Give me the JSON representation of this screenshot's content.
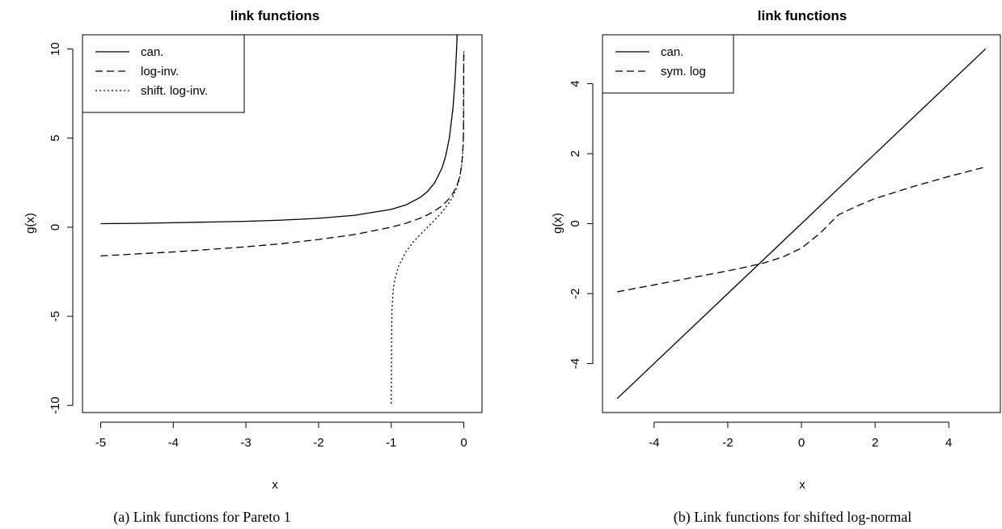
{
  "chart_data": [
    {
      "type": "line",
      "title": "link functions",
      "xlabel": "x",
      "ylabel": "g(x)",
      "caption": "(a) Link functions for Pareto 1",
      "xlim": [
        -5.25,
        0.25
      ],
      "ylim": [
        -10.4,
        10.8
      ],
      "xticks": [
        -5,
        -4,
        -3,
        -2,
        -1,
        0
      ],
      "yticks": [
        -10,
        -5,
        0,
        5,
        10
      ],
      "grid": false,
      "legend_position": "top-left",
      "series": [
        {
          "name": "can.",
          "line_style": "solid",
          "x": [
            -5,
            -4.5,
            -4,
            -3.5,
            -3,
            -2.5,
            -2,
            -1.5,
            -1,
            -0.8,
            -0.6,
            -0.5,
            -0.4,
            -0.3,
            -0.25,
            -0.2,
            -0.15,
            -0.12,
            -0.1,
            -0.09
          ],
          "y": [
            0.2,
            0.22,
            0.25,
            0.29,
            0.33,
            0.4,
            0.5,
            0.67,
            1.0,
            1.25,
            1.67,
            2.0,
            2.5,
            3.33,
            4.0,
            5.0,
            6.67,
            8.33,
            10.0,
            11.1
          ]
        },
        {
          "name": "log-inv.",
          "line_style": "dashed",
          "x": [
            -5,
            -4.5,
            -4,
            -3.5,
            -3,
            -2.5,
            -2,
            -1.5,
            -1,
            -0.8,
            -0.6,
            -0.5,
            -0.4,
            -0.3,
            -0.2,
            -0.15,
            -0.1,
            -0.07,
            -0.05,
            -0.03,
            -0.02,
            -0.01,
            -0.005,
            -5e-05
          ],
          "y": [
            -1.61,
            -1.5,
            -1.39,
            -1.25,
            -1.1,
            -0.92,
            -0.69,
            -0.41,
            0.0,
            0.22,
            0.51,
            0.69,
            0.92,
            1.2,
            1.61,
            1.9,
            2.3,
            2.66,
            3.0,
            3.51,
            3.91,
            4.61,
            5.3,
            9.9
          ]
        },
        {
          "name": "shift. log-inv.",
          "line_style": "dotted",
          "x": [
            -0.99995,
            -0.99,
            -0.97,
            -0.95,
            -0.9,
            -0.8,
            -0.7,
            -0.6,
            -0.5,
            -0.4,
            -0.3,
            -0.2,
            -0.15,
            -0.1,
            -0.07,
            -0.05,
            -0.03,
            -0.02,
            -0.01,
            -0.005,
            -5e-05
          ],
          "y": [
            -9.9,
            -4.6,
            -3.48,
            -2.94,
            -2.2,
            -1.39,
            -0.85,
            -0.41,
            0.0,
            0.41,
            0.85,
            1.39,
            1.73,
            2.2,
            2.59,
            2.94,
            3.48,
            3.89,
            4.6,
            5.3,
            9.9
          ]
        }
      ]
    },
    {
      "type": "line",
      "title": "link functions",
      "xlabel": "x",
      "ylabel": "g(x)",
      "caption": "(b) Link functions for shifted log-normal",
      "xlim": [
        -5.4,
        5.4
      ],
      "ylim": [
        -5.4,
        5.4
      ],
      "xticks": [
        -4,
        -2,
        0,
        2,
        4
      ],
      "yticks": [
        -4,
        -2,
        0,
        2,
        4
      ],
      "grid": false,
      "legend_position": "top-left",
      "series": [
        {
          "name": "can.",
          "line_style": "solid",
          "x": [
            -5,
            5
          ],
          "y": [
            -5,
            5
          ]
        },
        {
          "name": "sym. log",
          "line_style": "dashed",
          "x": [
            -5,
            -4,
            -3,
            -2,
            -1.5,
            -1,
            -0.5,
            0,
            0.5,
            1,
            1.5,
            2,
            3,
            4,
            5
          ],
          "y": [
            -1.95,
            -1.75,
            -1.55,
            -1.35,
            -1.24,
            -1.12,
            -0.95,
            -0.7,
            -0.28,
            0.25,
            0.5,
            0.72,
            1.05,
            1.35,
            1.62
          ]
        }
      ]
    }
  ]
}
